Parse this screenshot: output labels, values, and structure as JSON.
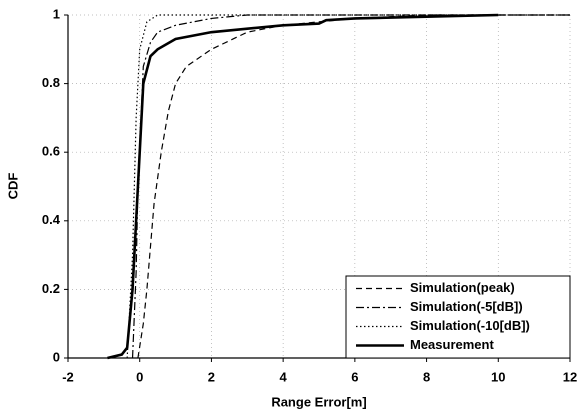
{
  "chart_data": {
    "type": "line",
    "xlabel": "Range Error[m]",
    "ylabel": "CDF",
    "xlim": [
      -2,
      12
    ],
    "xticks": [
      -2,
      0,
      2,
      4,
      6,
      8,
      10,
      12
    ],
    "ylim": [
      0,
      1
    ],
    "yticks": [
      0,
      0.2,
      0.4,
      0.6,
      0.8,
      1
    ],
    "grid": true,
    "legend": "lower right",
    "series": [
      {
        "name": "Simulation(peak)",
        "color": "#000000",
        "linestyle": "dashed",
        "linewidth": 1.2,
        "x": [
          -0.05,
          0.1,
          0.2,
          0.4,
          0.6,
          0.8,
          1.0,
          1.3,
          2.0,
          3.0,
          4.0,
          6.0,
          8.0,
          12.0
        ],
        "values": [
          0,
          0.1,
          0.2,
          0.45,
          0.6,
          0.72,
          0.8,
          0.85,
          0.9,
          0.95,
          0.97,
          0.99,
          1,
          1
        ]
      },
      {
        "name": "Simulation(-5[dB])",
        "color": "#000000",
        "linestyle": "dashdot",
        "linewidth": 1.2,
        "x": [
          -0.2,
          -0.1,
          -0.05,
          0.1,
          0.3,
          0.5,
          1.0,
          2.0,
          3.0,
          12.0
        ],
        "values": [
          0,
          0.25,
          0.5,
          0.85,
          0.92,
          0.95,
          0.97,
          0.99,
          1,
          1
        ]
      },
      {
        "name": "Simulation(-10[dB])",
        "color": "#000000",
        "linestyle": "dotted",
        "linewidth": 1.2,
        "x": [
          -0.35,
          -0.2,
          -0.1,
          0.0,
          0.2,
          0.5,
          12.0
        ],
        "values": [
          0,
          0.3,
          0.7,
          0.9,
          0.98,
          1,
          1
        ]
      },
      {
        "name": "Measurement",
        "color": "#000000",
        "linestyle": "solid",
        "linewidth": 2.6,
        "x": [
          -0.9,
          -0.5,
          -0.35,
          -0.2,
          -0.1,
          0.0,
          0.1,
          0.3,
          0.5,
          1.0,
          2.0,
          3.0,
          4.0,
          5.0,
          5.2,
          6.0,
          8.0,
          10.0
        ],
        "values": [
          0,
          0.01,
          0.03,
          0.2,
          0.4,
          0.6,
          0.8,
          0.88,
          0.9,
          0.93,
          0.95,
          0.96,
          0.97,
          0.975,
          0.985,
          0.99,
          0.995,
          1
        ]
      }
    ]
  }
}
